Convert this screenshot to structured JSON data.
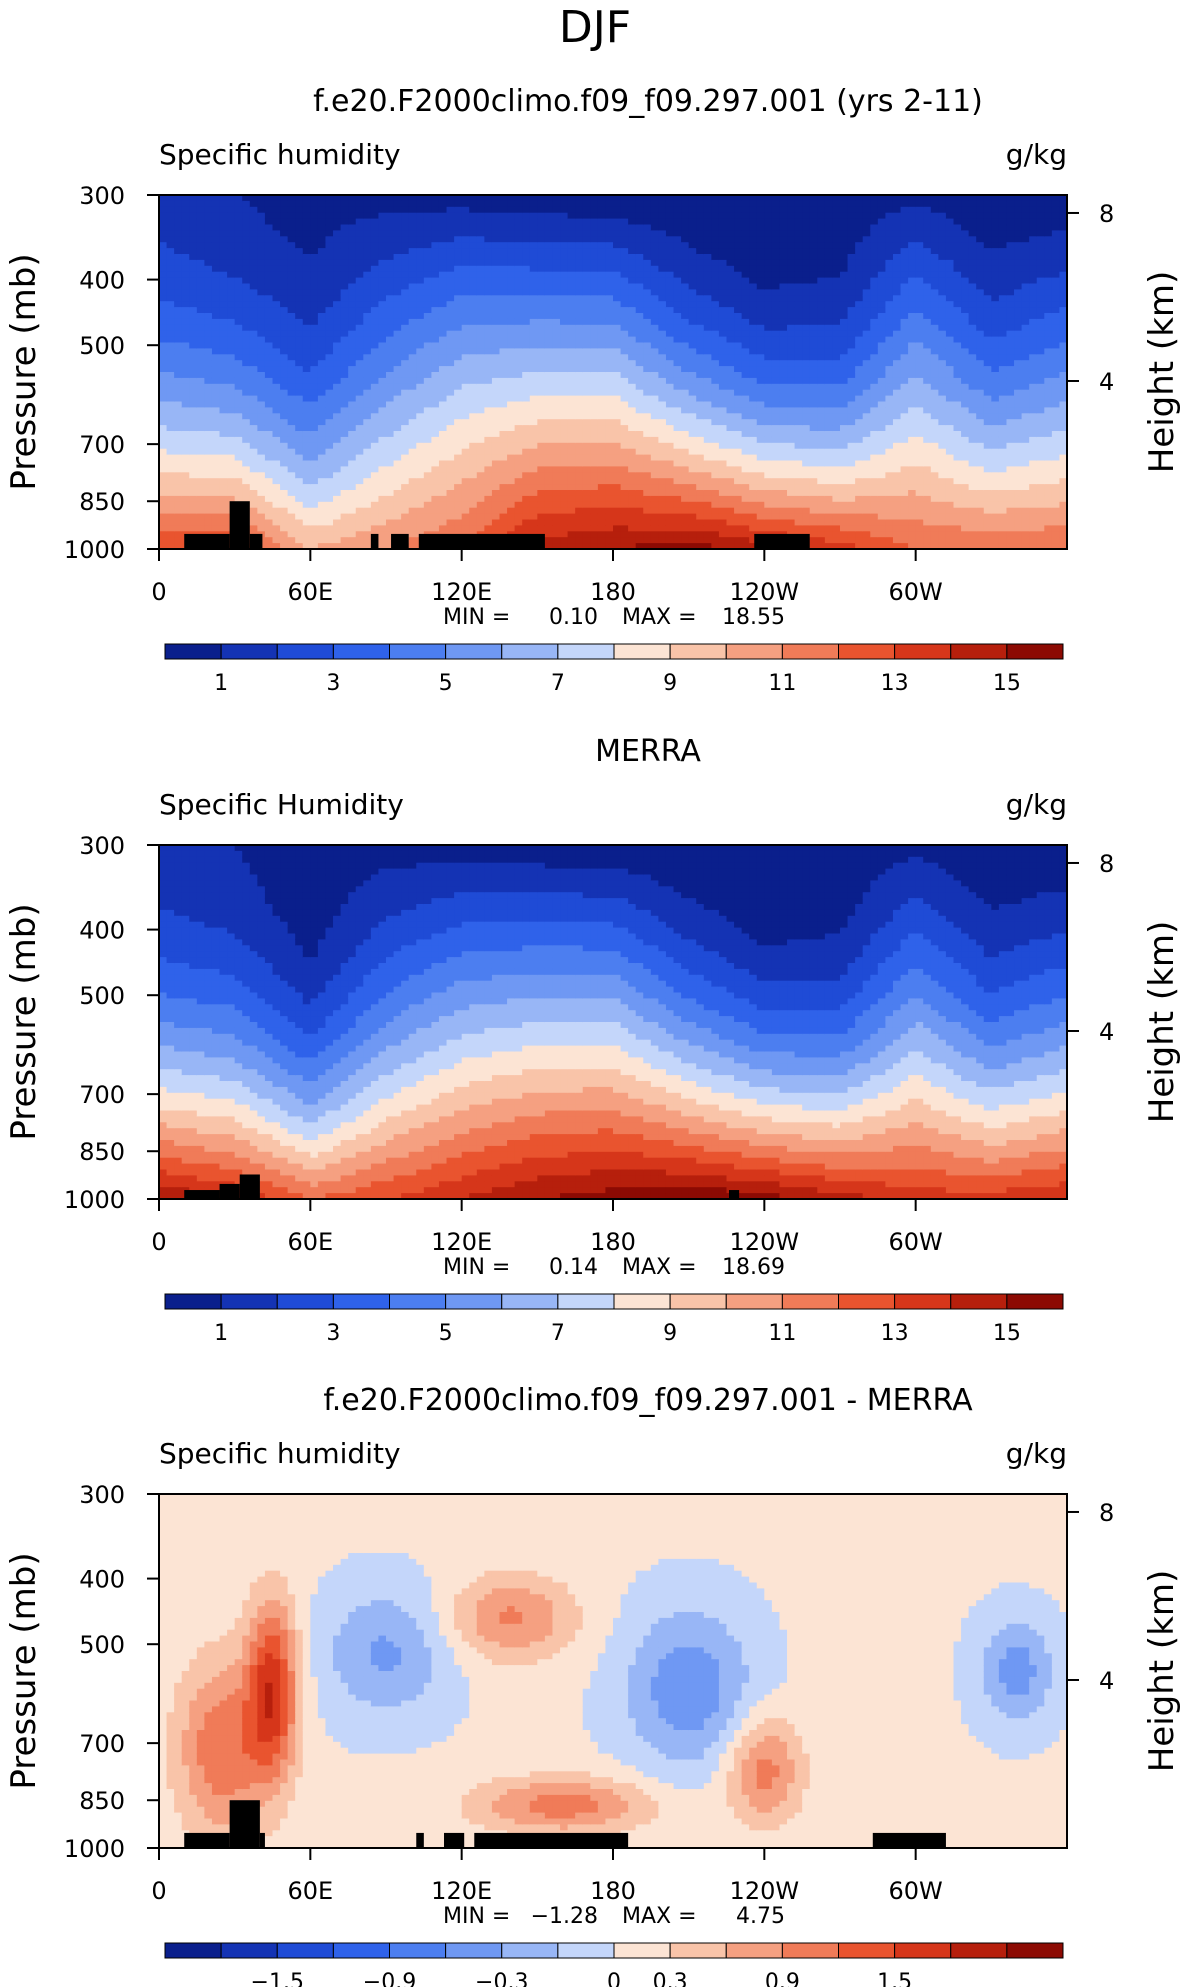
{
  "figure_title": "DJF",
  "chart_data": [
    {
      "type": "heatmap",
      "panel_title": "f.e20.F2000climo.f09_f09.297.001 (yrs 2-11)",
      "left_label": "Specific humidity",
      "units": "g/kg",
      "ylabel": "Pressure (mb)",
      "ylabel_right": "Height (km)",
      "y_ticks": [
        "300",
        "400",
        "500",
        "700",
        "850",
        "1000"
      ],
      "y_tick_values": [
        300,
        400,
        500,
        700,
        850,
        1000
      ],
      "y_right_ticks": [
        "8",
        "4"
      ],
      "y_right_tick_values": [
        8,
        4
      ],
      "x_ticks": [
        "0",
        "60E",
        "120E",
        "180",
        "120W",
        "60W"
      ],
      "x_tick_values": [
        0,
        60,
        120,
        180,
        240,
        300
      ],
      "xlim": [
        0,
        360
      ],
      "ylim": [
        1000,
        300
      ],
      "y_scale": "log-pressure",
      "min_label": "MIN =",
      "min_value": "0.10",
      "max_label": "MAX =",
      "max_value": "18.55",
      "colorbar_labels": [
        "1",
        "3",
        "5",
        "7",
        "9",
        "11",
        "13",
        "15"
      ],
      "colorbar_levels": 16,
      "field": {
        "top": [
          1.5,
          1.0,
          0.7,
          0.6,
          0.5,
          0.3,
          0.2,
          0.2,
          0.2,
          0.5,
          0.7,
          0.3,
          0.2
        ],
        "sfc": [
          13,
          13,
          10,
          11,
          12,
          14.5,
          15,
          15.5,
          14.5,
          13.5,
          12,
          12,
          12
        ],
        "mid": [
          5,
          4.5,
          3,
          5,
          6.5,
          7,
          7,
          5,
          3.5,
          3.5,
          6,
          4,
          5
        ]
      },
      "terrain": [
        [
          10,
          28,
          950
        ],
        [
          28,
          36,
          850
        ],
        [
          36,
          41,
          950
        ],
        [
          84,
          87,
          950
        ],
        [
          92,
          99,
          950
        ],
        [
          103,
          153,
          950
        ],
        [
          236,
          258,
          950
        ]
      ]
    },
    {
      "type": "heatmap",
      "panel_title": "MERRA",
      "left_label": "Specific Humidity",
      "units": "g/kg",
      "ylabel": "Pressure (mb)",
      "ylabel_right": "Height (km)",
      "y_ticks": [
        "300",
        "400",
        "500",
        "700",
        "850",
        "1000"
      ],
      "y_tick_values": [
        300,
        400,
        500,
        700,
        850,
        1000
      ],
      "y_right_ticks": [
        "8",
        "4"
      ],
      "y_right_tick_values": [
        8,
        4
      ],
      "x_ticks": [
        "0",
        "60E",
        "120E",
        "180",
        "120W",
        "60W"
      ],
      "x_tick_values": [
        0,
        60,
        120,
        180,
        240,
        300
      ],
      "xlim": [
        0,
        360
      ],
      "ylim": [
        1000,
        300
      ],
      "y_scale": "log-pressure",
      "min_label": "MIN =",
      "min_value": "0.14",
      "max_label": "MAX =",
      "max_value": "18.69",
      "colorbar_labels": [
        "1",
        "3",
        "5",
        "7",
        "9",
        "11",
        "13",
        "15"
      ],
      "colorbar_levels": 16,
      "field": {
        "top": [
          1.5,
          1.0,
          0.7,
          0.6,
          0.5,
          0.3,
          0.2,
          0.2,
          0.2,
          0.5,
          0.7,
          0.3,
          0.2
        ],
        "sfc": [
          15,
          14,
          12,
          13,
          14,
          15,
          15.5,
          16,
          15.5,
          14.5,
          13.5,
          13.5,
          14
        ],
        "mid": [
          5,
          4.5,
          2.5,
          5,
          6.5,
          7,
          7,
          5,
          3.5,
          3.5,
          6,
          4,
          5
        ]
      },
      "terrain": [
        [
          10,
          24,
          970
        ],
        [
          24,
          32,
          950
        ],
        [
          32,
          40,
          920
        ],
        [
          226,
          230,
          970
        ]
      ]
    },
    {
      "type": "heatmap",
      "panel_title": "f.e20.F2000climo.f09_f09.297.001 - MERRA",
      "left_label": "Specific humidity",
      "units": "g/kg",
      "ylabel": "Pressure (mb)",
      "ylabel_right": "Height (km)",
      "y_ticks": [
        "300",
        "400",
        "500",
        "700",
        "850",
        "1000"
      ],
      "y_tick_values": [
        300,
        400,
        500,
        700,
        850,
        1000
      ],
      "y_right_ticks": [
        "8",
        "4"
      ],
      "y_right_tick_values": [
        8,
        4
      ],
      "x_ticks": [
        "0",
        "60E",
        "120E",
        "180",
        "120W",
        "60W"
      ],
      "x_tick_values": [
        0,
        60,
        120,
        180,
        240,
        300
      ],
      "xlim": [
        0,
        360
      ],
      "ylim": [
        1000,
        300
      ],
      "y_scale": "log-pressure",
      "min_label": "MIN =",
      "min_value": "−1.28",
      "max_label": "MAX =",
      "max_value": "4.75",
      "colorbar_labels": [
        "−1.5",
        "−0.9",
        "−0.3",
        "0",
        "0.3",
        "0.9",
        "1.5"
      ],
      "colorbar_levels": 16,
      "terrain": [
        [
          10,
          28,
          950
        ],
        [
          28,
          40,
          850
        ],
        [
          40,
          42,
          950
        ],
        [
          102,
          105,
          950
        ],
        [
          113,
          121,
          950
        ],
        [
          125,
          186,
          950
        ],
        [
          283,
          312,
          950
        ]
      ]
    }
  ]
}
